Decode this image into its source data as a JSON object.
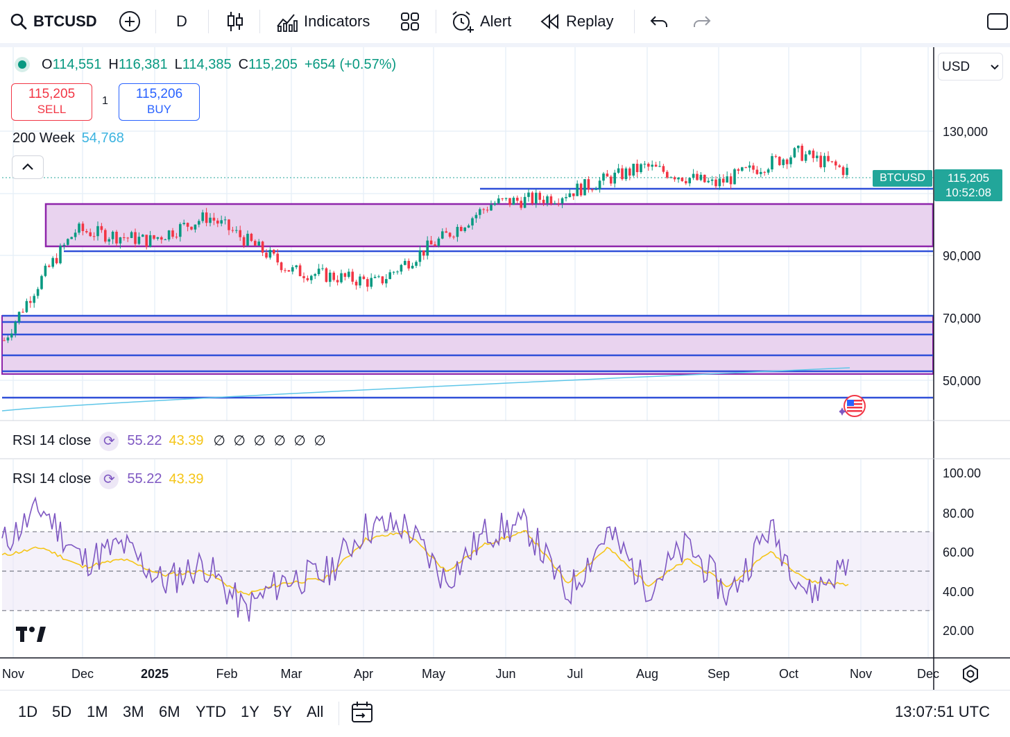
{
  "toolbar": {
    "symbol": "BTCUSD",
    "interval": "D",
    "indicators_label": "Indicators",
    "alert_label": "Alert",
    "replay_label": "Replay",
    "icons": [
      "search-icon",
      "add-symbol-icon",
      "candles-icon",
      "indicators-icon",
      "layouts-icon",
      "alarm-icon",
      "replay-icon",
      "undo-icon",
      "redo-icon",
      "fullscreen-icon"
    ]
  },
  "legend": {
    "o_label": "O",
    "o": "114,551",
    "h_label": "H",
    "h": "116,381",
    "l_label": "L",
    "l": "114,385",
    "c_label": "C",
    "c": "115,205",
    "change": "+654 (+0.57%)",
    "sell_price": "115,205",
    "sell_label": "SELL",
    "spread": "1",
    "buy_price": "115,206",
    "buy_label": "BUY",
    "ma_label": "200 Week",
    "ma_value": "54,768"
  },
  "price_axis": {
    "currency": "USD",
    "ticks": [
      "130,000",
      "90,000",
      "70,000",
      "50,000"
    ],
    "badge_symbol": "BTCUSD",
    "badge_price": "115,205",
    "badge_countdown": "10:52:08"
  },
  "rsi": {
    "label": "RSI 14 close",
    "value": "55.22",
    "ma_value": "43.39",
    "extra": "∅ ∅ ∅ ∅ ∅ ∅",
    "ticks": [
      "100.00",
      "80.00",
      "60.00",
      "40.00",
      "20.00"
    ]
  },
  "time_axis": [
    "Nov",
    "Dec",
    "2025",
    "Feb",
    "Mar",
    "Apr",
    "May",
    "Jun",
    "Jul",
    "Aug",
    "Sep",
    "Oct",
    "Nov",
    "Dec"
  ],
  "ranges": [
    "1D",
    "5D",
    "1M",
    "3M",
    "6M",
    "YTD",
    "1Y",
    "5Y",
    "All"
  ],
  "clock": "13:07:51 UTC",
  "colors": {
    "up": "#089981",
    "down": "#f23645",
    "zone": "#e9d3ef",
    "zone_border": "#8e24aa",
    "level": "#2f4fd8",
    "rsi": "#7e57c2",
    "rsi_ma": "#f5c518",
    "ma200": "#5ec6e8"
  },
  "chart_data": {
    "type": "candlestick",
    "symbol": "BTCUSD",
    "interval": "D",
    "x": [
      "Nov",
      "Dec",
      "2025",
      "Feb",
      "Mar",
      "Apr",
      "May",
      "Jun",
      "Jul",
      "Aug",
      "Sep",
      "Oct",
      "Nov"
    ],
    "approx_close": [
      70000,
      97000,
      94000,
      101000,
      86000,
      83000,
      95000,
      105000,
      107000,
      117000,
      111000,
      122000,
      115205
    ],
    "last": {
      "open": 114551,
      "high": 116381,
      "low": 114385,
      "close": 115205
    },
    "zones": [
      {
        "low": 92000,
        "high": 105000
      },
      {
        "low": 51000,
        "high": 72000
      }
    ],
    "levels": [
      108000,
      91000,
      71000,
      69500,
      66000,
      60000,
      51000,
      44000
    ],
    "ma200_range": [
      43000,
      54768
    ],
    "rsi_approx": [
      64,
      82,
      55,
      63,
      44,
      54,
      30,
      46,
      48,
      72,
      73,
      45,
      70,
      73,
      38,
      70,
      42,
      63,
      37,
      72,
      38,
      55
    ],
    "rsi_ma_approx": [
      58,
      62,
      52,
      56,
      48,
      50,
      38,
      44,
      46,
      66,
      70,
      50,
      64,
      70,
      44,
      62,
      43,
      56,
      42,
      60,
      45,
      43
    ],
    "rsi_bands": [
      70,
      50,
      30
    ]
  }
}
